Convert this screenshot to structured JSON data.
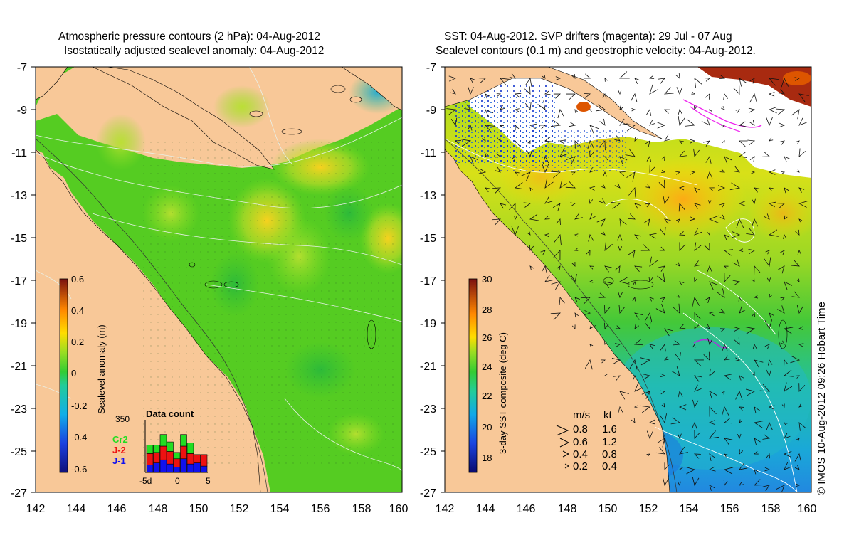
{
  "left_panel": {
    "title_line1": "Atmospheric pressure contours (2 hPa): 04-Aug-2012",
    "title_line2": "Isostatically adjusted sealevel anomaly: 04-Aug-2012",
    "x_ticks": [
      "142",
      "144",
      "146",
      "148",
      "150",
      "152",
      "154",
      "156",
      "158",
      "160"
    ],
    "y_ticks": [
      "-7",
      "-9",
      "-11",
      "-13",
      "-15",
      "-17",
      "-19",
      "-21",
      "-23",
      "-25",
      "-27"
    ],
    "colorbar": {
      "label": "Sealevel anomaly (m)",
      "ticks": [
        "0.6",
        "0.4",
        "0.2",
        "0",
        "-0.2",
        "-0.4",
        "-0.6"
      ]
    },
    "data_count": {
      "title": "Data count",
      "ymax_label": "350",
      "x_ticks": [
        "-5d",
        "0",
        "5"
      ],
      "legend": [
        {
          "label": "Cr2",
          "color": "#22dd22"
        },
        {
          "label": "J-2",
          "color": "#ee1111"
        },
        {
          "label": "J-1",
          "color": "#1111ee"
        }
      ],
      "bars": [
        {
          "j1": 0.14,
          "j2": 0.22,
          "cr2": 0.16
        },
        {
          "j1": 0.18,
          "j2": 0.2,
          "cr2": 0.14
        },
        {
          "j1": 0.24,
          "j2": 0.26,
          "cr2": 0.22
        },
        {
          "j1": 0.16,
          "j2": 0.24,
          "cr2": 0.18
        },
        {
          "j1": 0.1,
          "j2": 0.16,
          "cr2": 0.12
        },
        {
          "j1": 0.26,
          "j2": 0.24,
          "cr2": 0.22
        },
        {
          "j1": 0.16,
          "j2": 0.2,
          "cr2": 0.2
        },
        {
          "j1": 0.18,
          "j2": 0.16,
          "cr2": 0.0
        },
        {
          "j1": 0.12,
          "j2": 0.22,
          "cr2": 0.0
        }
      ]
    }
  },
  "right_panel": {
    "title_line1": "SST: 04-Aug-2012. SVP drifters (magenta): 29 Jul - 07 Aug",
    "title_line2": "Sealevel contours (0.1 m) and geostrophic velocity: 04-Aug-2012.",
    "x_ticks": [
      "142",
      "144",
      "146",
      "148",
      "150",
      "152",
      "154",
      "156",
      "158",
      "160"
    ],
    "y_ticks": [
      "-7",
      "-9",
      "-11",
      "-13",
      "-15",
      "-17",
      "-19",
      "-21",
      "-23",
      "-25",
      "-27"
    ],
    "colorbar": {
      "label": "3-day SST composite (deg C)",
      "ticks": [
        "30",
        "28",
        "26",
        "24",
        "22",
        "20",
        "18"
      ]
    },
    "velocity_legend": {
      "header_ms": "m/s",
      "header_kt": "kt",
      "rows": [
        {
          "ms": "0.8",
          "kt": "1.6"
        },
        {
          "ms": "0.6",
          "kt": "1.2"
        },
        {
          "ms": "0.4",
          "kt": "0.8"
        },
        {
          "ms": "0.2",
          "kt": "0.4"
        }
      ]
    }
  },
  "credit": "© IMOS 10-Aug-2012 09:26 Hobart Time",
  "colors": {
    "land": "#f8c898",
    "anomaly_field": "#55cc22",
    "cloud": "#ffffff",
    "magenta_drifters": "#ee22ee"
  }
}
